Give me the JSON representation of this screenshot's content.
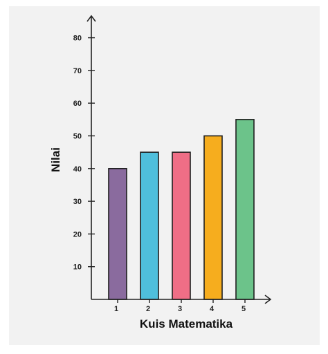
{
  "chart_data": {
    "type": "bar",
    "title": "",
    "xlabel": "Kuis Matematika",
    "ylabel": "Nilai",
    "categories": [
      "1",
      "2",
      "3",
      "4",
      "5"
    ],
    "values": [
      40,
      45,
      45,
      50,
      55
    ],
    "colors": [
      "#8a6b9e",
      "#4fbfdc",
      "#ef6e86",
      "#f6ad1e",
      "#6cc38a"
    ],
    "yticks": [
      10,
      20,
      30,
      40,
      50,
      60,
      70,
      80
    ],
    "ylim": [
      0,
      85
    ],
    "grid": false,
    "axis_color": "#222222"
  }
}
